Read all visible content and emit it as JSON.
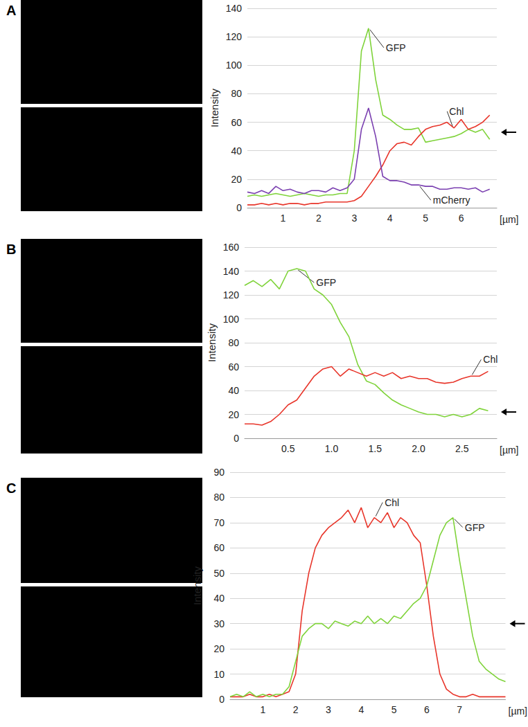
{
  "chart_data": [
    {
      "type": "line",
      "title": "A",
      "xlabel": "[µm]",
      "ylabel": "Intensity",
      "x": [
        0,
        0.2,
        0.4,
        0.6,
        0.8,
        1,
        1.2,
        1.4,
        1.6,
        1.8,
        2,
        2.2,
        2.4,
        2.6,
        2.8,
        3,
        3.2,
        3.4,
        3.6,
        3.8,
        4,
        4.2,
        4.4,
        4.6,
        4.8,
        5,
        5.2,
        5.4,
        5.6,
        5.8,
        6,
        6.2,
        6.4,
        6.6,
        6.8
      ],
      "series": [
        {
          "name": "GFP",
          "color": "#7fd33a",
          "values": [
            8,
            9,
            8,
            9,
            10,
            9,
            8,
            9,
            10,
            9,
            8,
            9,
            9,
            10,
            10,
            40,
            110,
            126,
            90,
            65,
            62,
            58,
            55,
            55,
            56,
            46,
            47,
            48,
            49,
            50,
            52,
            55,
            53,
            55,
            48
          ]
        },
        {
          "name": "Chl",
          "color": "#e8352a",
          "values": [
            2,
            2,
            3,
            2,
            3,
            2,
            3,
            3,
            2,
            3,
            3,
            4,
            4,
            4,
            4,
            5,
            8,
            15,
            22,
            30,
            40,
            45,
            46,
            44,
            50,
            55,
            57,
            58,
            60,
            56,
            62,
            55,
            57,
            60,
            65
          ]
        },
        {
          "name": "mCherry",
          "color": "#7a3fb0",
          "values": [
            11,
            10,
            12,
            10,
            15,
            12,
            13,
            11,
            10,
            12,
            12,
            11,
            14,
            12,
            14,
            20,
            55,
            70,
            50,
            22,
            19,
            19,
            18,
            16,
            16,
            15,
            15,
            13,
            13,
            14,
            14,
            13,
            14,
            11,
            13
          ]
        }
      ],
      "xlim": [
        0,
        7
      ],
      "xticks": [
        1,
        2,
        3,
        4,
        5,
        6
      ],
      "ylim": [
        0,
        140
      ],
      "yticks": [
        0,
        20,
        40,
        60,
        80,
        100,
        120,
        140
      ],
      "grid": true,
      "arrow_level": 53
    },
    {
      "type": "line",
      "title": "B",
      "xlabel": "[µm]",
      "ylabel": "Intensity",
      "x": [
        0,
        0.1,
        0.2,
        0.3,
        0.4,
        0.5,
        0.6,
        0.7,
        0.8,
        0.9,
        1,
        1.1,
        1.2,
        1.3,
        1.4,
        1.5,
        1.6,
        1.7,
        1.8,
        1.9,
        2,
        2.1,
        2.2,
        2.3,
        2.4,
        2.5,
        2.6,
        2.7,
        2.8
      ],
      "series": [
        {
          "name": "GFP",
          "color": "#7fd33a",
          "values": [
            128,
            132,
            127,
            133,
            125,
            140,
            142,
            140,
            125,
            120,
            112,
            97,
            85,
            62,
            48,
            45,
            38,
            32,
            28,
            25,
            22,
            20,
            20,
            18,
            20,
            18,
            20,
            25,
            23
          ]
        },
        {
          "name": "Chl",
          "color": "#e8352a",
          "values": [
            12,
            12,
            11,
            14,
            20,
            28,
            32,
            42,
            52,
            58,
            60,
            52,
            58,
            55,
            52,
            55,
            52,
            55,
            50,
            52,
            50,
            50,
            47,
            46,
            47,
            50,
            52,
            52,
            56
          ]
        }
      ],
      "xlim": [
        0,
        2.9
      ],
      "xticks": [
        0.5,
        {
          "value": 1,
          "label": "1.0"
        },
        1.5,
        {
          "value": 2,
          "label": "2.0"
        },
        2.5
      ],
      "ylim": [
        0,
        160
      ],
      "yticks": [
        0,
        20,
        40,
        60,
        80,
        100,
        120,
        140,
        160
      ],
      "grid": true,
      "arrow_level": 22
    },
    {
      "type": "line",
      "title": "C",
      "xlabel": "[µm]",
      "ylabel": "Intensity",
      "x": [
        0,
        0.2,
        0.4,
        0.6,
        0.8,
        1,
        1.2,
        1.4,
        1.6,
        1.8,
        2,
        2.2,
        2.4,
        2.6,
        2.8,
        3,
        3.2,
        3.4,
        3.6,
        3.8,
        4,
        4.2,
        4.4,
        4.6,
        4.8,
        5,
        5.2,
        5.4,
        5.6,
        5.8,
        6,
        6.2,
        6.4,
        6.6,
        6.8,
        7,
        7.2,
        7.4,
        7.6,
        7.8,
        8,
        8.2,
        8.4
      ],
      "series": [
        {
          "name": "Chl",
          "color": "#e8352a",
          "values": [
            1,
            1,
            1,
            2,
            1,
            1,
            2,
            1,
            2,
            3,
            10,
            35,
            50,
            60,
            65,
            68,
            70,
            72,
            75,
            70,
            76,
            68,
            72,
            70,
            74,
            68,
            72,
            70,
            65,
            62,
            45,
            25,
            10,
            4,
            2,
            1,
            1,
            2,
            1,
            1,
            1,
            1,
            1
          ]
        },
        {
          "name": "GFP",
          "color": "#7fd33a",
          "values": [
            1,
            2,
            1,
            3,
            1,
            2,
            1,
            2,
            2,
            5,
            15,
            25,
            28,
            30,
            30,
            28,
            31,
            30,
            29,
            31,
            30,
            33,
            30,
            32,
            30,
            33,
            32,
            35,
            38,
            40,
            45,
            55,
            65,
            70,
            72,
            55,
            40,
            25,
            15,
            12,
            10,
            8,
            7
          ]
        }
      ],
      "xlim": [
        0,
        8.4
      ],
      "xticks": [
        1,
        2,
        3,
        4,
        5,
        6,
        7
      ],
      "ylim": [
        0,
        90
      ],
      "yticks": [
        0,
        10,
        20,
        30,
        40,
        50,
        60,
        70,
        80,
        90
      ],
      "grid": true,
      "arrow_level": 30
    }
  ]
}
